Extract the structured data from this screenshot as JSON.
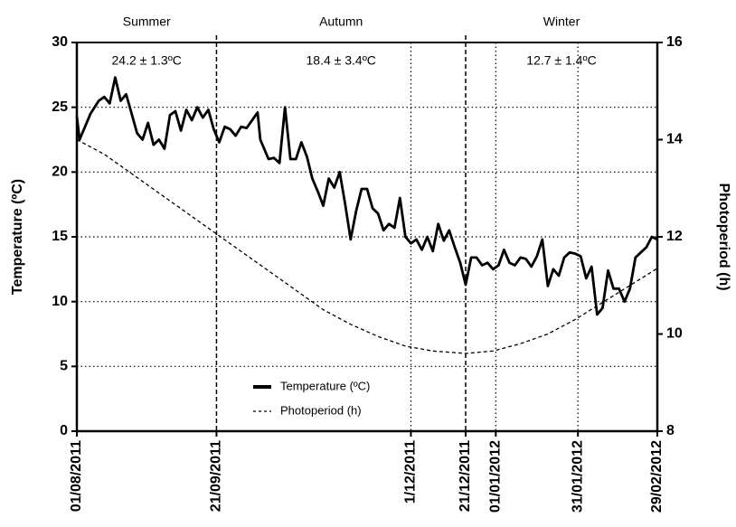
{
  "chart_data": {
    "type": "line",
    "xlim": [
      0,
      212
    ],
    "xticks": [
      {
        "value": 0,
        "label": "01/08/2011"
      },
      {
        "value": 51,
        "label": "21/09/2011"
      },
      {
        "value": 122,
        "label": "1/12/2011"
      },
      {
        "value": 142,
        "label": "21/12/2011"
      },
      {
        "value": 153,
        "label": "01/01/2012"
      },
      {
        "value": 183,
        "label": "31/01/2012"
      },
      {
        "value": 212,
        "label": "29/02/2012"
      }
    ],
    "ylim": [
      0,
      30
    ],
    "yticks": [
      0,
      5,
      10,
      15,
      20,
      25,
      30
    ],
    "y2lim": [
      8,
      16
    ],
    "y2ticks": [
      8,
      10,
      12,
      14,
      16
    ],
    "ylabel": "Temperature (ºC)",
    "y2label": "Photoperiod (h)",
    "grid": true,
    "season_dividers": [
      51,
      142
    ],
    "seasons": [
      {
        "label": "Summer",
        "mean": "24.2 ± 1.3ºC"
      },
      {
        "label": "Autumn",
        "mean": "18.4 ± 3.4ºC"
      },
      {
        "label": "Winter",
        "mean": "12.7 ± 1.4ºC"
      }
    ],
    "series": [
      {
        "name": "Temperature (ºC)",
        "color": "#000000",
        "style": "solid",
        "x": [
          0,
          1,
          5,
          8,
          10,
          12,
          14,
          16,
          18,
          20,
          22,
          24,
          26,
          28,
          30,
          32,
          34,
          36,
          38,
          40,
          42,
          44,
          46,
          48,
          50,
          52,
          54,
          56,
          58,
          60,
          62,
          66,
          67,
          70,
          72,
          74,
          76,
          78,
          80,
          82,
          84,
          86,
          88,
          90,
          92,
          94,
          96,
          98,
          100,
          102,
          104,
          106,
          108,
          110,
          112,
          114,
          116,
          118,
          120,
          122,
          124,
          126,
          128,
          130,
          132,
          134,
          136,
          138,
          140,
          142,
          144,
          146,
          148,
          150,
          152,
          154,
          156,
          158,
          160,
          162,
          164,
          166,
          168,
          170,
          172,
          174,
          176,
          178,
          180,
          182,
          184,
          186,
          188,
          190,
          192,
          194,
          196,
          198,
          200,
          202,
          204,
          206,
          208,
          210,
          212
        ],
        "values": [
          24.3,
          22.5,
          24.5,
          25.5,
          25.8,
          25.3,
          27.3,
          25.5,
          26,
          24.5,
          23,
          22.5,
          23.8,
          22.1,
          22.5,
          21.8,
          24.4,
          24.7,
          23.2,
          24.8,
          24.0,
          25.0,
          24.2,
          24.8,
          23.3,
          22.3,
          23.5,
          23.3,
          22.8,
          23.5,
          23.4,
          24.6,
          22.5,
          21.0,
          21.1,
          20.7,
          25.0,
          21.0,
          21.0,
          22.3,
          21.2,
          19.5,
          18.5,
          17.4,
          19.5,
          18.8,
          20.0,
          17.5,
          14.8,
          17.0,
          18.7,
          18.7,
          17.2,
          16.8,
          15.5,
          16.0,
          15.7,
          18.0,
          15.0,
          14.5,
          14.8,
          14.0,
          15.0,
          13.9,
          16.0,
          14.7,
          15.5,
          14.2,
          13.0,
          11.3,
          13.4,
          13.4,
          12.8,
          13.0,
          12.5,
          12.8,
          14.0,
          13.0,
          12.8,
          13.4,
          13.3,
          12.7,
          13.5,
          14.8,
          11.2,
          12.5,
          12.0,
          13.4,
          13.8,
          13.7,
          13.5,
          11.8,
          12.7,
          9.0,
          9.5,
          12.4,
          11.0,
          11.0,
          10.0,
          11.0,
          13.4,
          13.8,
          14.2,
          15.0,
          14.8
        ]
      },
      {
        "name": "Photoperiod (h)",
        "color": "#000000",
        "style": "dashed",
        "axis": "y2",
        "x": [
          0,
          10,
          20,
          30,
          40,
          50,
          60,
          70,
          80,
          90,
          100,
          110,
          120,
          130,
          142,
          152,
          162,
          172,
          182,
          192,
          202,
          212
        ],
        "values": [
          14.0,
          13.7,
          13.3,
          12.9,
          12.5,
          12.1,
          11.7,
          11.3,
          10.9,
          10.5,
          10.2,
          9.95,
          9.75,
          9.65,
          9.6,
          9.65,
          9.8,
          10.0,
          10.3,
          10.65,
          11.0,
          11.35
        ]
      }
    ]
  }
}
